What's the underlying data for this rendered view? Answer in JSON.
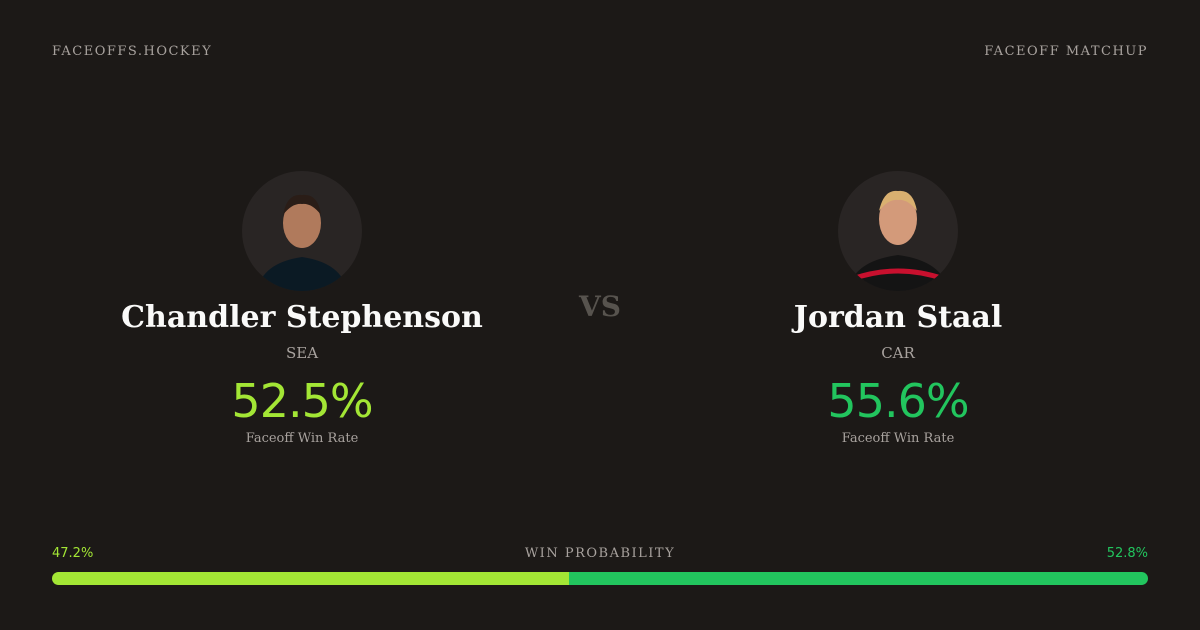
{
  "header": {
    "site": "FACEOFFS.HOCKEY",
    "label": "FACEOFF MATCHUP"
  },
  "vs": "VS",
  "players": [
    {
      "name": "Chandler Stephenson",
      "team": "SEA",
      "win_rate": "52.5%",
      "win_rate_label": "Faceoff Win Rate",
      "color": "#a3e635"
    },
    {
      "name": "Jordan Staal",
      "team": "CAR",
      "win_rate": "55.6%",
      "win_rate_label": "Faceoff Win Rate",
      "color": "#22c55e"
    }
  ],
  "win_probability": {
    "title": "WIN PROBABILITY",
    "values": [
      47.2,
      52.8
    ],
    "value_labels": [
      "47.2%",
      "52.8%"
    ],
    "colors": [
      "#a3e635",
      "#22c55e"
    ]
  }
}
